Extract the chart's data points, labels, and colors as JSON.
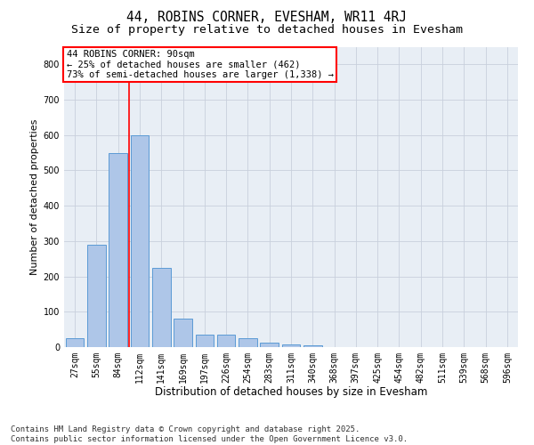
{
  "title": "44, ROBINS CORNER, EVESHAM, WR11 4RJ",
  "subtitle": "Size of property relative to detached houses in Evesham",
  "xlabel": "Distribution of detached houses by size in Evesham",
  "ylabel": "Number of detached properties",
  "categories": [
    "27sqm",
    "55sqm",
    "84sqm",
    "112sqm",
    "141sqm",
    "169sqm",
    "197sqm",
    "226sqm",
    "254sqm",
    "283sqm",
    "311sqm",
    "340sqm",
    "368sqm",
    "397sqm",
    "425sqm",
    "454sqm",
    "482sqm",
    "511sqm",
    "539sqm",
    "568sqm",
    "596sqm"
  ],
  "values": [
    25,
    290,
    550,
    600,
    225,
    80,
    35,
    35,
    25,
    12,
    8,
    5,
    0,
    0,
    0,
    0,
    0,
    0,
    0,
    0,
    0
  ],
  "bar_color": "#aec6e8",
  "bar_edgecolor": "#5b9bd5",
  "bar_linewidth": 0.7,
  "ylim": [
    0,
    850
  ],
  "yticks": [
    0,
    100,
    200,
    300,
    400,
    500,
    600,
    700,
    800
  ],
  "red_line_x": 2.5,
  "annotation_text": "44 ROBINS CORNER: 90sqm\n← 25% of detached houses are smaller (462)\n73% of semi-detached houses are larger (1,338) →",
  "annotation_box_facecolor": "white",
  "annotation_box_edgecolor": "red",
  "annotation_fontsize": 7.5,
  "red_line_color": "red",
  "red_line_linewidth": 1.2,
  "grid_color": "#c8d0dc",
  "background_color": "#e8eef5",
  "footer_text": "Contains HM Land Registry data © Crown copyright and database right 2025.\nContains public sector information licensed under the Open Government Licence v3.0.",
  "title_fontsize": 10.5,
  "subtitle_fontsize": 9.5,
  "xlabel_fontsize": 8.5,
  "ylabel_fontsize": 8,
  "tick_fontsize": 7,
  "footer_fontsize": 6.5
}
